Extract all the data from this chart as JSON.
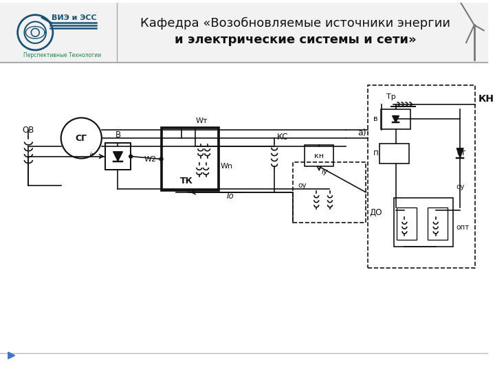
{
  "bg_color": "#ffffff",
  "header_bg": "#f5f5f5",
  "logo_blue": "#1a5276",
  "logo_green": "#1e8449",
  "circuit_color": "#111111",
  "header_line_color": "#aaaaaa",
  "arrow_color": "#4472c4",
  "title_line1": "Кафедра «Возобновляемые источники энергии",
  "title_line2": "и электрические системы и сети»",
  "logo_text": "ВИЭ и ЭСС",
  "logo_subtext": "Перспективные Технологии"
}
